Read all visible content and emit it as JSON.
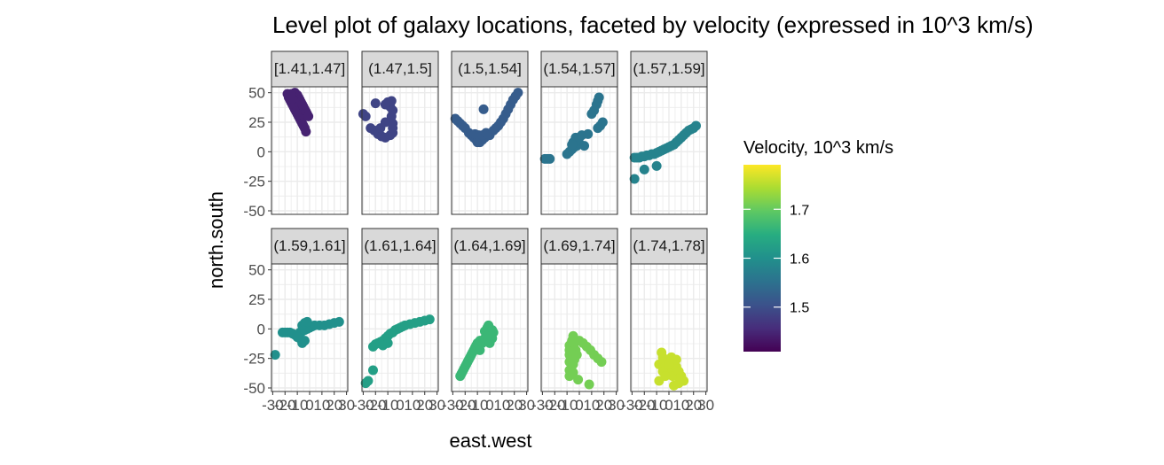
{
  "chart_data": {
    "type": "scatter",
    "title": "Level plot of galaxy locations, faceted by velocity (expressed in 10^3 km/s)",
    "xlabel": "east.west",
    "ylabel": "north.south",
    "xlim": [
      -31,
      31
    ],
    "ylim": [
      -53,
      55
    ],
    "x_tick_labels": [
      "-30",
      "-20",
      "-10",
      "0",
      "10",
      "20",
      "30"
    ],
    "y_ticks": [
      -50,
      -25,
      0,
      25,
      50
    ],
    "y_tick_labels": [
      "-50",
      "-25",
      "0",
      "25",
      "50"
    ],
    "grid": true,
    "legend": {
      "title": "Velocity, 10^3 km/s",
      "position": "right",
      "range": [
        1.409,
        1.791
      ],
      "tick_values": [
        1.5,
        1.6,
        1.7
      ],
      "tick_labels": [
        "1.5",
        "1.6",
        "1.7"
      ]
    },
    "facets": [
      {
        "label": "[1.41,1.47]",
        "velocity": 1.445,
        "points": [
          [
            -18,
            49
          ],
          [
            -17,
            46
          ],
          [
            -16,
            44
          ],
          [
            -15,
            42
          ],
          [
            -14,
            40
          ],
          [
            -13,
            38
          ],
          [
            -12,
            36
          ],
          [
            -11,
            34
          ],
          [
            -10,
            32
          ],
          [
            -9,
            30
          ],
          [
            -8,
            28
          ],
          [
            -7,
            26
          ],
          [
            -6,
            24
          ],
          [
            -5,
            22
          ],
          [
            -4,
            20
          ],
          [
            -3,
            17
          ],
          [
            -12,
            50
          ],
          [
            -10,
            48
          ],
          [
            -9,
            46
          ],
          [
            -8,
            44
          ],
          [
            -7,
            42
          ],
          [
            -6,
            40
          ],
          [
            -5,
            38
          ],
          [
            -4,
            36
          ],
          [
            -3,
            34
          ],
          [
            -2,
            32
          ],
          [
            -1,
            30
          ],
          [
            -14,
            45
          ],
          [
            -15,
            49
          ]
        ]
      },
      {
        "label": "(1.47,1.5]",
        "velocity": 1.487,
        "points": [
          [
            -30,
            32
          ],
          [
            -28,
            30
          ],
          [
            -20,
            41
          ],
          [
            -24,
            20
          ],
          [
            -21,
            18
          ],
          [
            -18,
            15
          ],
          [
            -15,
            13
          ],
          [
            -12,
            12
          ],
          [
            -8,
            14
          ],
          [
            -6,
            16
          ],
          [
            -6,
            20
          ],
          [
            -6,
            24
          ],
          [
            -7,
            30
          ],
          [
            -6,
            35
          ],
          [
            -8,
            38
          ],
          [
            -10,
            42
          ],
          [
            -7,
            43
          ],
          [
            -12,
            40
          ],
          [
            -16,
            20
          ],
          [
            -12,
            25
          ]
        ]
      },
      {
        "label": "(1.5,1.54]",
        "velocity": 1.52,
        "points": [
          [
            -28,
            28
          ],
          [
            -26,
            26
          ],
          [
            -24,
            24
          ],
          [
            -22,
            22
          ],
          [
            -20,
            20
          ],
          [
            -17,
            16
          ],
          [
            -15,
            14
          ],
          [
            -13,
            12
          ],
          [
            -11,
            10
          ],
          [
            -10,
            8
          ],
          [
            -8,
            8
          ],
          [
            -6,
            10
          ],
          [
            -4,
            12
          ],
          [
            -12,
            15
          ],
          [
            -9,
            14
          ],
          [
            -6,
            14
          ],
          [
            -3,
            16
          ],
          [
            0,
            14
          ],
          [
            -5,
            36
          ],
          [
            3,
            18
          ],
          [
            5,
            20
          ],
          [
            7,
            22
          ],
          [
            9,
            25
          ],
          [
            11,
            28
          ],
          [
            13,
            32
          ],
          [
            15,
            36
          ],
          [
            17,
            40
          ],
          [
            19,
            44
          ],
          [
            21,
            47
          ],
          [
            23,
            50
          ]
        ]
      },
      {
        "label": "(1.54,1.57]",
        "velocity": 1.556,
        "points": [
          [
            -28,
            -6
          ],
          [
            -26,
            -6
          ],
          [
            -24,
            -6
          ],
          [
            -10,
            -2
          ],
          [
            -8,
            0
          ],
          [
            -6,
            2
          ],
          [
            -4,
            4
          ],
          [
            -2,
            5
          ],
          [
            0,
            7
          ],
          [
            -1,
            10
          ],
          [
            -3,
            12
          ],
          [
            -5,
            8
          ],
          [
            0,
            12
          ],
          [
            2,
            14
          ],
          [
            4,
            5
          ],
          [
            7,
            15
          ],
          [
            10,
            32
          ],
          [
            12,
            35
          ],
          [
            14,
            40
          ],
          [
            15,
            43
          ],
          [
            16,
            46
          ],
          [
            15,
            20
          ],
          [
            17,
            22
          ],
          [
            19,
            25
          ],
          [
            -6,
            6
          ]
        ]
      },
      {
        "label": "(1.57,1.59]",
        "velocity": 1.58,
        "points": [
          [
            -28,
            -5
          ],
          [
            -26,
            -5
          ],
          [
            -24,
            -5
          ],
          [
            -22,
            -4
          ],
          [
            -20,
            -4
          ],
          [
            -18,
            -3
          ],
          [
            -16,
            -3
          ],
          [
            -14,
            -2
          ],
          [
            -12,
            -2
          ],
          [
            -10,
            -1
          ],
          [
            -8,
            0
          ],
          [
            -6,
            1
          ],
          [
            -4,
            2
          ],
          [
            -2,
            3
          ],
          [
            0,
            4
          ],
          [
            2,
            5
          ],
          [
            4,
            6
          ],
          [
            6,
            8
          ],
          [
            8,
            10
          ],
          [
            10,
            12
          ],
          [
            12,
            14
          ],
          [
            14,
            16
          ],
          [
            16,
            18
          ],
          [
            18,
            19
          ],
          [
            20,
            20
          ],
          [
            22,
            22
          ],
          [
            -28,
            -23
          ],
          [
            -20,
            -15
          ],
          [
            -10,
            -12
          ]
        ]
      },
      {
        "label": "(1.59,1.61]",
        "velocity": 1.6,
        "points": [
          [
            -28,
            -22
          ],
          [
            -22,
            -3
          ],
          [
            -20,
            -3
          ],
          [
            -18,
            -3
          ],
          [
            -16,
            -3
          ],
          [
            -14,
            -4
          ],
          [
            -12,
            -5
          ],
          [
            -10,
            -5
          ],
          [
            -8,
            -3
          ],
          [
            -6,
            -2
          ],
          [
            -4,
            -1
          ],
          [
            -2,
            0
          ],
          [
            0,
            1
          ],
          [
            2,
            2
          ],
          [
            4,
            3
          ],
          [
            8,
            3
          ],
          [
            12,
            3
          ],
          [
            16,
            4
          ],
          [
            20,
            5
          ],
          [
            24,
            6
          ],
          [
            -8,
            -8
          ],
          [
            -6,
            -12
          ],
          [
            -4,
            -10
          ],
          [
            -10,
            -7
          ],
          [
            -6,
            3
          ],
          [
            -4,
            5
          ],
          [
            -2,
            6
          ]
        ]
      },
      {
        "label": "(1.61,1.64]",
        "velocity": 1.625,
        "points": [
          [
            -28,
            -46
          ],
          [
            -26,
            -44
          ],
          [
            -22,
            -35
          ],
          [
            -22,
            -15
          ],
          [
            -20,
            -13
          ],
          [
            -18,
            -12
          ],
          [
            -16,
            -11
          ],
          [
            -14,
            -10
          ],
          [
            -12,
            -8
          ],
          [
            -10,
            -6
          ],
          [
            -8,
            -4
          ],
          [
            -6,
            -3
          ],
          [
            -4,
            -1
          ],
          [
            -2,
            0
          ],
          [
            0,
            1
          ],
          [
            2,
            2
          ],
          [
            4,
            3
          ],
          [
            8,
            4
          ],
          [
            12,
            5
          ],
          [
            16,
            6
          ],
          [
            20,
            7
          ],
          [
            24,
            8
          ],
          [
            -10,
            -12
          ],
          [
            -14,
            -14
          ]
        ]
      },
      {
        "label": "(1.64,1.69]",
        "velocity": 1.665,
        "points": [
          [
            -24,
            -40
          ],
          [
            -23,
            -38
          ],
          [
            -22,
            -36
          ],
          [
            -21,
            -34
          ],
          [
            -20,
            -32
          ],
          [
            -19,
            -30
          ],
          [
            -18,
            -28
          ],
          [
            -17,
            -26
          ],
          [
            -16,
            -24
          ],
          [
            -15,
            -22
          ],
          [
            -14,
            -20
          ],
          [
            -13,
            -18
          ],
          [
            -12,
            -16
          ],
          [
            -11,
            -14
          ],
          [
            -10,
            -12
          ],
          [
            -8,
            -10
          ],
          [
            -6,
            -12
          ],
          [
            -4,
            -8
          ],
          [
            -4,
            -2
          ],
          [
            -2,
            1
          ],
          [
            -1,
            3
          ],
          [
            0,
            -3
          ],
          [
            1,
            -5
          ],
          [
            2,
            -8
          ],
          [
            0,
            -12
          ],
          [
            2,
            -1
          ],
          [
            3,
            -3
          ],
          [
            -2,
            -6
          ],
          [
            -8,
            -18
          ]
        ]
      },
      {
        "label": "(1.69,1.74]",
        "velocity": 1.71,
        "points": [
          [
            -8,
            -14
          ],
          [
            -8,
            -18
          ],
          [
            -8,
            -22
          ],
          [
            -8,
            -28
          ],
          [
            -8,
            -35
          ],
          [
            -8,
            -40
          ],
          [
            -6,
            -10
          ],
          [
            -5,
            -6
          ],
          [
            -4,
            -12
          ],
          [
            -5,
            -24
          ],
          [
            -5,
            -30
          ],
          [
            -5,
            -37
          ],
          [
            -3,
            -18
          ],
          [
            -2,
            -22
          ],
          [
            0,
            -10
          ],
          [
            3,
            -12
          ],
          [
            6,
            -15
          ],
          [
            9,
            -18
          ],
          [
            12,
            -22
          ],
          [
            15,
            -25
          ],
          [
            18,
            -28
          ],
          [
            -1,
            -43
          ],
          [
            -7,
            -20
          ],
          [
            -4,
            -26
          ],
          [
            8,
            -47
          ]
        ]
      },
      {
        "label": "(1.74,1.78]",
        "velocity": 1.76,
        "points": [
          [
            -8,
            -30
          ],
          [
            -8,
            -44
          ],
          [
            -6,
            -20
          ],
          [
            -5,
            -24
          ],
          [
            -4,
            -28
          ],
          [
            -3,
            -32
          ],
          [
            -2,
            -36
          ],
          [
            0,
            -34
          ],
          [
            1,
            -38
          ],
          [
            3,
            -40
          ],
          [
            2,
            -24
          ],
          [
            4,
            -28
          ],
          [
            6,
            -32
          ],
          [
            8,
            -36
          ],
          [
            10,
            -40
          ],
          [
            12,
            -44
          ],
          [
            -5,
            -36
          ],
          [
            -3,
            -40
          ],
          [
            0,
            -30
          ],
          [
            4,
            -48
          ],
          [
            8,
            -46
          ],
          [
            10,
            -42
          ],
          [
            6,
            -26
          ]
        ]
      }
    ]
  }
}
